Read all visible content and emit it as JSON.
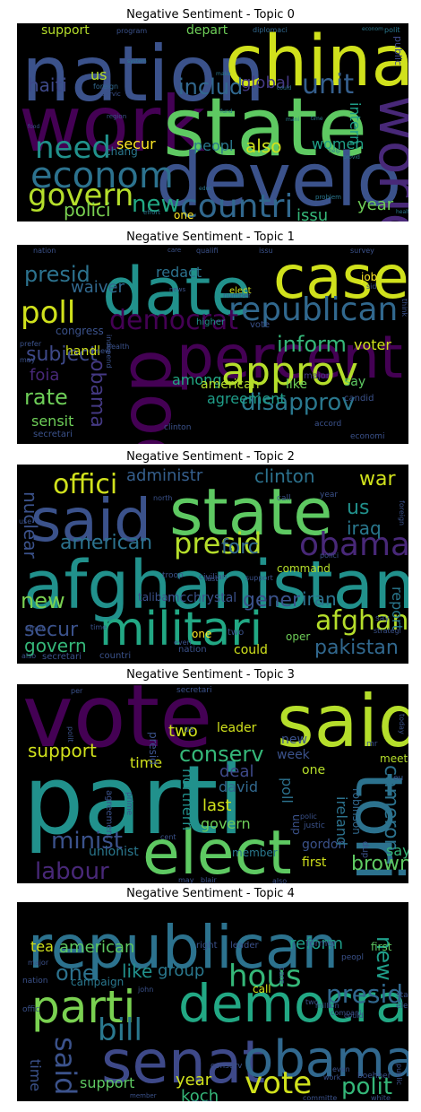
{
  "panels": [
    {
      "title": "Negative Sentiment - Topic 0",
      "words": [
        {
          "t": "nation",
          "c": "#3b528b"
        },
        {
          "t": "china",
          "c": "#d0e11c"
        },
        {
          "t": "work",
          "c": "#440154"
        },
        {
          "t": "state",
          "c": "#5ec962"
        },
        {
          "t": "develop",
          "c": "#3b528b"
        },
        {
          "t": "world",
          "c": "#482878"
        },
        {
          "t": "econom",
          "c": "#2c728e"
        },
        {
          "t": "govern",
          "c": "#b5de2b"
        },
        {
          "t": "countri",
          "c": "#31688e"
        },
        {
          "t": "need",
          "c": "#21918c"
        },
        {
          "t": "unit",
          "c": "#355f8d"
        },
        {
          "t": "global",
          "c": "#443983"
        },
        {
          "t": "includ",
          "c": "#31688e"
        },
        {
          "t": "haiti",
          "c": "#3e4989"
        },
        {
          "t": "us",
          "c": "#b5de2b"
        },
        {
          "t": "support",
          "c": "#b5de2b"
        },
        {
          "t": "depart",
          "c": "#6ece58"
        },
        {
          "t": "new",
          "c": "#22a884"
        },
        {
          "t": "polici",
          "c": "#7ad151"
        },
        {
          "t": "secur",
          "c": "#fde725"
        },
        {
          "t": "peopl",
          "c": "#2a788e"
        },
        {
          "t": "also",
          "c": "#d0e11c"
        },
        {
          "t": "women",
          "c": "#1fa188"
        },
        {
          "t": "intern",
          "c": "#1f9e89"
        },
        {
          "t": "chang",
          "c": "#2a788e"
        },
        {
          "t": "issu",
          "c": "#35b779"
        },
        {
          "t": "year",
          "c": "#6ece58"
        },
        {
          "t": "one",
          "c": "#fde725"
        },
        {
          "t": "public",
          "c": "#3e4989"
        },
        {
          "t": "program",
          "c": "#3b528b"
        },
        {
          "t": "diplomaci",
          "c": "#31688e"
        },
        {
          "t": "polit",
          "c": "#2a788e"
        },
        {
          "t": "econom",
          "c": "#2a788e"
        },
        {
          "t": "foreign",
          "c": "#31688e"
        },
        {
          "t": "servic",
          "c": "#3b528b"
        },
        {
          "t": "region",
          "c": "#3b528b"
        },
        {
          "t": "food",
          "c": "#3b528b"
        },
        {
          "t": "effort",
          "c": "#2a788e"
        },
        {
          "t": "make",
          "c": "#2a788e"
        },
        {
          "t": "fund",
          "c": "#2a788e"
        },
        {
          "t": "time",
          "c": "#2a788e"
        },
        {
          "t": "mani",
          "c": "#2a788e"
        },
        {
          "t": "help",
          "c": "#2a788e"
        },
        {
          "t": "provid",
          "c": "#2a788e"
        },
        {
          "t": "educ",
          "c": "#2a788e"
        },
        {
          "t": "problem",
          "c": "#2a788e"
        },
        {
          "t": "health",
          "c": "#2a788e"
        },
        {
          "t": "system",
          "c": "#2a788e"
        },
        {
          "t": "could",
          "c": "#2a788e"
        }
      ]
    },
    {
      "title": "Negative Sentiment - Topic 1",
      "words": [
        {
          "t": "case",
          "c": "#d0e11c"
        },
        {
          "t": "date",
          "c": "#21918c"
        },
        {
          "t": "doc",
          "c": "#440154"
        },
        {
          "t": "percent",
          "c": "#440154"
        },
        {
          "t": "republican",
          "c": "#31688e"
        },
        {
          "t": "approv",
          "c": "#b5de2b"
        },
        {
          "t": "democrat",
          "c": "#440154"
        },
        {
          "t": "poll",
          "c": "#d0e11c"
        },
        {
          "t": "presid",
          "c": "#2c728e"
        },
        {
          "t": "inform",
          "c": "#35b779"
        },
        {
          "t": "subject",
          "c": "#3e4989"
        },
        {
          "t": "rate",
          "c": "#6ece58"
        },
        {
          "t": "obama",
          "c": "#443983"
        },
        {
          "t": "disapprov",
          "c": "#2a788e"
        },
        {
          "t": "agreement",
          "c": "#1f9e89"
        },
        {
          "t": "waiver",
          "c": "#31688e"
        },
        {
          "t": "redact",
          "c": "#2c728e"
        },
        {
          "t": "voter",
          "c": "#d0e11c"
        },
        {
          "t": "foia",
          "c": "#482878"
        },
        {
          "t": "sensit",
          "c": "#6ece58"
        },
        {
          "t": "secretari",
          "c": "#3b528b"
        },
        {
          "t": "among",
          "c": "#22a884"
        },
        {
          "t": "american",
          "c": "#b5de2b"
        },
        {
          "t": "like",
          "c": "#6ece58"
        },
        {
          "t": "say",
          "c": "#5ec962"
        },
        {
          "t": "handl",
          "c": "#d0e11c"
        },
        {
          "t": "congress",
          "c": "#3b528b"
        },
        {
          "t": "elect",
          "c": "#d0e11c"
        },
        {
          "t": "vote",
          "c": "#3b528b"
        },
        {
          "t": "higher",
          "c": "#21918c"
        },
        {
          "t": "major",
          "c": "#443983"
        },
        {
          "t": "candid",
          "c": "#3b528b"
        },
        {
          "t": "accord",
          "c": "#3b528b"
        },
        {
          "t": "economi",
          "c": "#3b528b"
        },
        {
          "t": "nation",
          "c": "#3b528b"
        },
        {
          "t": "qualifi",
          "c": "#3b528b"
        },
        {
          "t": "issu",
          "c": "#3b528b"
        },
        {
          "t": "survey",
          "c": "#3b528b"
        },
        {
          "t": "job",
          "c": "#fde725"
        },
        {
          "t": "sid",
          "c": "#3b528b"
        },
        {
          "t": "think",
          "c": "#3b528b"
        },
        {
          "t": "number",
          "c": "#3b528b"
        },
        {
          "t": "prefer",
          "c": "#3b528b"
        },
        {
          "t": "health",
          "c": "#3b528b"
        },
        {
          "t": "may",
          "c": "#3b528b"
        },
        {
          "t": "new",
          "c": "#3b528b"
        },
        {
          "t": "independ",
          "c": "#3b528b"
        },
        {
          "t": "clinton",
          "c": "#3b528b"
        },
        {
          "t": "news",
          "c": "#3b528b"
        },
        {
          "t": "care",
          "c": "#3b528b"
        }
      ]
    },
    {
      "title": "Negative Sentiment - Topic 2",
      "words": [
        {
          "t": "said",
          "c": "#3b528b"
        },
        {
          "t": "state",
          "c": "#5ec962"
        },
        {
          "t": "afghanistan",
          "c": "#21918c"
        },
        {
          "t": "militari",
          "c": "#22a884"
        },
        {
          "t": "obama",
          "c": "#482878"
        },
        {
          "t": "offici",
          "c": "#d0e11c"
        },
        {
          "t": "presid",
          "c": "#b5de2b"
        },
        {
          "t": "american",
          "c": "#2c728e"
        },
        {
          "t": "forc",
          "c": "#31688e"
        },
        {
          "t": "nuclear",
          "c": "#3b528b"
        },
        {
          "t": "afghan",
          "c": "#b5de2b"
        },
        {
          "t": "new",
          "c": "#7ad151"
        },
        {
          "t": "secur",
          "c": "#3b528b"
        },
        {
          "t": "govern",
          "c": "#35b779"
        },
        {
          "t": "pakistan",
          "c": "#31688e"
        },
        {
          "t": "iran",
          "c": "#2c728e"
        },
        {
          "t": "gener",
          "c": "#3b528b"
        },
        {
          "t": "war",
          "c": "#d0e11c"
        },
        {
          "t": "us",
          "c": "#21918c"
        },
        {
          "t": "iraq",
          "c": "#2a788e"
        },
        {
          "t": "administr",
          "c": "#355f8d"
        },
        {
          "t": "clinton",
          "c": "#2c728e"
        },
        {
          "t": "report",
          "c": "#2a788e"
        },
        {
          "t": "mcchrystal",
          "c": "#3b528b"
        },
        {
          "t": "taliban",
          "c": "#3b528b"
        },
        {
          "t": "command",
          "c": "#b5de2b"
        },
        {
          "t": "one",
          "c": "#fde725"
        },
        {
          "t": "two",
          "c": "#3b528b"
        },
        {
          "t": "oper",
          "c": "#6ece58"
        },
        {
          "t": "could",
          "c": "#d0e11c"
        },
        {
          "t": "nation",
          "c": "#3b528b"
        },
        {
          "t": "countri",
          "c": "#3b528b"
        },
        {
          "t": "secretari",
          "c": "#3b528b"
        },
        {
          "t": "also",
          "c": "#3b528b"
        },
        {
          "t": "effort",
          "c": "#3b528b"
        },
        {
          "t": "time",
          "c": "#3b528b"
        },
        {
          "t": "troop",
          "c": "#3b528b"
        },
        {
          "t": "civilian",
          "c": "#3b528b"
        },
        {
          "t": "support",
          "c": "#3b528b"
        },
        {
          "t": "polici",
          "c": "#3b528b"
        },
        {
          "t": "call",
          "c": "#3b528b"
        },
        {
          "t": "year",
          "c": "#3b528b"
        },
        {
          "t": "north",
          "c": "#3b528b"
        },
        {
          "t": "last",
          "c": "#3b528b"
        },
        {
          "t": "use",
          "c": "#3b528b"
        },
        {
          "t": "say",
          "c": "#3b528b"
        },
        {
          "t": "strategi",
          "c": "#3b528b"
        },
        {
          "t": "foreign",
          "c": "#3b528b"
        },
        {
          "t": "even",
          "c": "#3b528b"
        }
      ]
    },
    {
      "title": "Negative Sentiment - Topic 3",
      "words": [
        {
          "t": "vote",
          "c": "#440154"
        },
        {
          "t": "said",
          "c": "#b5de2b"
        },
        {
          "t": "parti",
          "c": "#21918c"
        },
        {
          "t": "tori",
          "c": "#2c728e"
        },
        {
          "t": "elect",
          "c": "#5ec962"
        },
        {
          "t": "labour",
          "c": "#482878"
        },
        {
          "t": "minist",
          "c": "#3b528b"
        },
        {
          "t": "support",
          "c": "#d0e11c"
        },
        {
          "t": "conserv",
          "c": "#35b779"
        },
        {
          "t": "cameron",
          "c": "#2c728e"
        },
        {
          "t": "brown",
          "c": "#5ec962"
        },
        {
          "t": "leader",
          "c": "#d0e11c"
        },
        {
          "t": "deal",
          "c": "#3e4989"
        },
        {
          "t": "david",
          "c": "#31688e"
        },
        {
          "t": "poll",
          "c": "#2c728e"
        },
        {
          "t": "northern",
          "c": "#21918c"
        },
        {
          "t": "last",
          "c": "#d0e11c"
        },
        {
          "t": "govern",
          "c": "#6ece58"
        },
        {
          "t": "gordon",
          "c": "#3b528b"
        },
        {
          "t": "first",
          "c": "#d0e11c"
        },
        {
          "t": "ireland",
          "c": "#2c728e"
        },
        {
          "t": "robinson",
          "c": "#31688e"
        },
        {
          "t": "two",
          "c": "#d0e11c"
        },
        {
          "t": "time",
          "c": "#d0e11c"
        },
        {
          "t": "new",
          "c": "#3b528b"
        },
        {
          "t": "week",
          "c": "#3b528b"
        },
        {
          "t": "one",
          "c": "#b5de2b"
        },
        {
          "t": "say",
          "c": "#35b779"
        },
        {
          "t": "uup",
          "c": "#3b528b"
        },
        {
          "t": "dup",
          "c": "#3b528b"
        },
        {
          "t": "unionist",
          "c": "#2a788e"
        },
        {
          "t": "member",
          "c": "#2a788e"
        },
        {
          "t": "meet",
          "c": "#b5de2b"
        },
        {
          "t": "presid",
          "c": "#3b528b"
        },
        {
          "t": "us",
          "c": "#3b528b"
        },
        {
          "t": "secretari",
          "c": "#3b528b"
        },
        {
          "t": "per",
          "c": "#3b528b"
        },
        {
          "t": "polit",
          "c": "#3b528b"
        },
        {
          "t": "prime",
          "c": "#3b528b"
        },
        {
          "t": "agreement",
          "c": "#3b528b"
        },
        {
          "t": "cent",
          "c": "#3b528b"
        },
        {
          "t": "justic",
          "c": "#3b528b"
        },
        {
          "t": "polic",
          "c": "#3b528b"
        },
        {
          "t": "also",
          "c": "#3b528b"
        },
        {
          "t": "blair",
          "c": "#3b528b"
        },
        {
          "t": "today",
          "c": "#3b528b"
        },
        {
          "t": "mr",
          "c": "#3b528b"
        },
        {
          "t": "eu",
          "c": "#3b528b"
        },
        {
          "t": "may",
          "c": "#3b528b"
        }
      ]
    },
    {
      "title": "Negative Sentiment - Topic 4",
      "words": [
        {
          "t": "republican",
          "c": "#2c728e"
        },
        {
          "t": "democrat",
          "c": "#22a884"
        },
        {
          "t": "senat",
          "c": "#3e4989"
        },
        {
          "t": "obama",
          "c": "#31688e"
        },
        {
          "t": "parti",
          "c": "#7ad151"
        },
        {
          "t": "hous",
          "c": "#35b779"
        },
        {
          "t": "presid",
          "c": "#31688e"
        },
        {
          "t": "bill",
          "c": "#2a788e"
        },
        {
          "t": "vote",
          "c": "#d0e11c"
        },
        {
          "t": "said",
          "c": "#3b528b"
        },
        {
          "t": "polit",
          "c": "#35b779"
        },
        {
          "t": "one",
          "c": "#2c728e"
        },
        {
          "t": "new",
          "c": "#1f9e89"
        },
        {
          "t": "like",
          "c": "#21918c"
        },
        {
          "t": "group",
          "c": "#2a788e"
        },
        {
          "t": "reform",
          "c": "#1f9e89"
        },
        {
          "t": "american",
          "c": "#5ec962"
        },
        {
          "t": "tea",
          "c": "#d0e11c"
        },
        {
          "t": "year",
          "c": "#d0e11c"
        },
        {
          "t": "support",
          "c": "#5ec962"
        },
        {
          "t": "koch",
          "c": "#35b779"
        },
        {
          "t": "time",
          "c": "#3b528b"
        },
        {
          "t": "campaign",
          "c": "#2a788e"
        },
        {
          "t": "leader",
          "c": "#3b528b"
        },
        {
          "t": "first",
          "c": "#5ec962"
        },
        {
          "t": "right",
          "c": "#3b528b"
        },
        {
          "t": "former",
          "c": "#3b528b"
        },
        {
          "t": "call",
          "c": "#d0e11c"
        },
        {
          "t": "care",
          "c": "#3b528b"
        },
        {
          "t": "peopl",
          "c": "#3b528b"
        },
        {
          "t": "state",
          "c": "#3b528b"
        },
        {
          "t": "elect",
          "c": "#3b528b"
        },
        {
          "t": "nation",
          "c": "#3b528b"
        },
        {
          "t": "john",
          "c": "#3b528b"
        },
        {
          "t": "million",
          "c": "#3b528b"
        },
        {
          "t": "compani",
          "c": "#3b528b"
        },
        {
          "t": "major",
          "c": "#3b528b"
        },
        {
          "t": "two",
          "c": "#3b528b"
        },
        {
          "t": "offic",
          "c": "#3b528b"
        },
        {
          "t": "work",
          "c": "#3b528b"
        },
        {
          "t": "boehner",
          "c": "#3b528b"
        },
        {
          "t": "even",
          "c": "#3b528b"
        },
        {
          "t": "conserv",
          "c": "#3b528b"
        },
        {
          "t": "could",
          "c": "#3b528b"
        },
        {
          "t": "member",
          "c": "#3b528b"
        },
        {
          "t": "govern",
          "c": "#3b528b"
        },
        {
          "t": "committe",
          "c": "#3b528b"
        },
        {
          "t": "white",
          "c": "#3b528b"
        },
        {
          "t": "public",
          "c": "#3b528b"
        }
      ]
    }
  ]
}
